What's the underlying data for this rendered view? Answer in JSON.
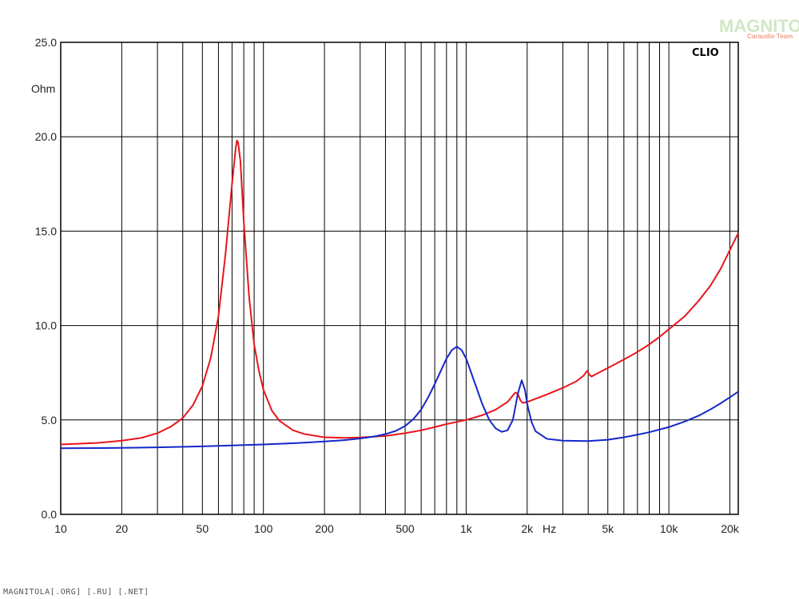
{
  "chart_data": {
    "type": "line",
    "title": "",
    "xlabel": "Hz",
    "ylabel": "Ohm",
    "brand_label": "CLIO",
    "x_scale": "log",
    "xlim": [
      10,
      22000
    ],
    "ylim": [
      0,
      25
    ],
    "grid": true,
    "x_ticks": [
      {
        "value": 10,
        "label": "10"
      },
      {
        "value": 20,
        "label": "20"
      },
      {
        "value": 50,
        "label": "50"
      },
      {
        "value": 100,
        "label": "100"
      },
      {
        "value": 200,
        "label": "200"
      },
      {
        "value": 500,
        "label": "500"
      },
      {
        "value": 1000,
        "label": "1k"
      },
      {
        "value": 2000,
        "label": "2k"
      },
      {
        "value": 5000,
        "label": "5k"
      },
      {
        "value": 10000,
        "label": "10k"
      },
      {
        "value": 20000,
        "label": "20k"
      }
    ],
    "y_ticks": [
      {
        "value": 0,
        "label": "0.0"
      },
      {
        "value": 5,
        "label": "5.0"
      },
      {
        "value": 10,
        "label": "10.0"
      },
      {
        "value": 15,
        "label": "15.0"
      },
      {
        "value": 20,
        "label": "20.0"
      },
      {
        "value": 25,
        "label": "25.0"
      }
    ],
    "series": [
      {
        "color": "#e8161b",
        "points": [
          [
            10,
            3.7
          ],
          [
            15,
            3.78
          ],
          [
            20,
            3.9
          ],
          [
            25,
            4.05
          ],
          [
            30,
            4.3
          ],
          [
            35,
            4.65
          ],
          [
            40,
            5.1
          ],
          [
            45,
            5.8
          ],
          [
            50,
            6.8
          ],
          [
            55,
            8.3
          ],
          [
            60,
            10.5
          ],
          [
            65,
            13.8
          ],
          [
            70,
            17.5
          ],
          [
            73,
            19.4
          ],
          [
            74,
            19.8
          ],
          [
            75,
            19.7
          ],
          [
            77,
            18.7
          ],
          [
            80,
            15.5
          ],
          [
            85,
            11.5
          ],
          [
            90,
            9.0
          ],
          [
            95,
            7.6
          ],
          [
            100,
            6.6
          ],
          [
            110,
            5.5
          ],
          [
            120,
            4.95
          ],
          [
            140,
            4.45
          ],
          [
            160,
            4.25
          ],
          [
            200,
            4.08
          ],
          [
            250,
            4.05
          ],
          [
            300,
            4.07
          ],
          [
            400,
            4.15
          ],
          [
            500,
            4.3
          ],
          [
            600,
            4.45
          ],
          [
            700,
            4.62
          ],
          [
            800,
            4.78
          ],
          [
            1000,
            5.0
          ],
          [
            1200,
            5.25
          ],
          [
            1400,
            5.55
          ],
          [
            1600,
            5.95
          ],
          [
            1700,
            6.3
          ],
          [
            1750,
            6.45
          ],
          [
            1800,
            6.38
          ],
          [
            1850,
            6.05
          ],
          [
            1900,
            5.9
          ],
          [
            2000,
            5.95
          ],
          [
            2500,
            6.35
          ],
          [
            3000,
            6.7
          ],
          [
            3500,
            7.05
          ],
          [
            3800,
            7.35
          ],
          [
            3950,
            7.6
          ],
          [
            4050,
            7.4
          ],
          [
            4150,
            7.3
          ],
          [
            4500,
            7.5
          ],
          [
            5000,
            7.75
          ],
          [
            6000,
            8.2
          ],
          [
            7000,
            8.6
          ],
          [
            8000,
            9.0
          ],
          [
            9000,
            9.4
          ],
          [
            10000,
            9.8
          ],
          [
            12000,
            10.5
          ],
          [
            14000,
            11.3
          ],
          [
            16000,
            12.1
          ],
          [
            18000,
            13.0
          ],
          [
            20000,
            14.0
          ],
          [
            22000,
            14.9
          ]
        ]
      },
      {
        "color": "#1428c8",
        "points": [
          [
            10,
            3.5
          ],
          [
            20,
            3.52
          ],
          [
            30,
            3.55
          ],
          [
            50,
            3.6
          ],
          [
            80,
            3.67
          ],
          [
            100,
            3.7
          ],
          [
            150,
            3.78
          ],
          [
            200,
            3.86
          ],
          [
            250,
            3.93
          ],
          [
            300,
            4.02
          ],
          [
            350,
            4.12
          ],
          [
            400,
            4.25
          ],
          [
            450,
            4.42
          ],
          [
            500,
            4.68
          ],
          [
            550,
            5.05
          ],
          [
            600,
            5.55
          ],
          [
            650,
            6.2
          ],
          [
            700,
            6.9
          ],
          [
            750,
            7.6
          ],
          [
            800,
            8.25
          ],
          [
            850,
            8.7
          ],
          [
            900,
            8.88
          ],
          [
            950,
            8.7
          ],
          [
            1000,
            8.25
          ],
          [
            1100,
            7.0
          ],
          [
            1200,
            5.85
          ],
          [
            1300,
            5.0
          ],
          [
            1400,
            4.55
          ],
          [
            1500,
            4.37
          ],
          [
            1600,
            4.45
          ],
          [
            1700,
            5.0
          ],
          [
            1800,
            6.4
          ],
          [
            1880,
            7.1
          ],
          [
            1950,
            6.6
          ],
          [
            2000,
            5.85
          ],
          [
            2100,
            4.9
          ],
          [
            2200,
            4.4
          ],
          [
            2500,
            4.0
          ],
          [
            3000,
            3.9
          ],
          [
            4000,
            3.88
          ],
          [
            5000,
            3.95
          ],
          [
            6000,
            4.08
          ],
          [
            7000,
            4.22
          ],
          [
            8000,
            4.35
          ],
          [
            10000,
            4.62
          ],
          [
            12000,
            4.92
          ],
          [
            14000,
            5.22
          ],
          [
            16000,
            5.55
          ],
          [
            18000,
            5.88
          ],
          [
            20000,
            6.2
          ],
          [
            22000,
            6.5
          ]
        ]
      }
    ]
  },
  "watermark": {
    "logo_text": "MAGNITOLA",
    "logo_subtext": "Caraudio Team",
    "footer_text": "MAGNITOLA[.ORG] [.RU] [.NET]"
  }
}
